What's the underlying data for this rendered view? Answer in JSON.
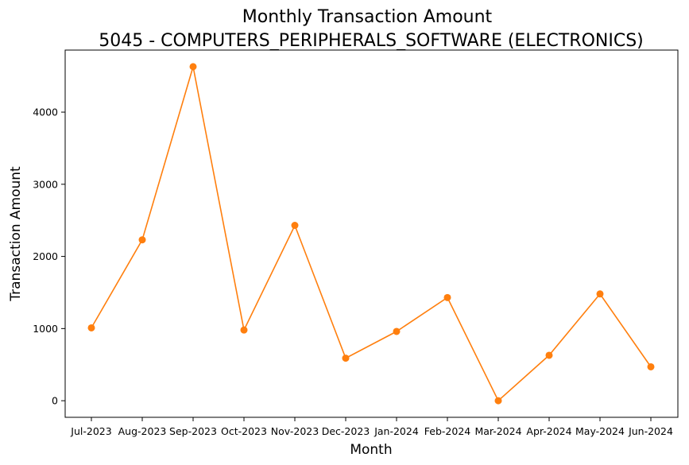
{
  "chart_data": {
    "type": "line",
    "title": "Monthly Transaction Amount",
    "subtitle": "5045 - COMPUTERS_PERIPHERALS_SOFTWARE (ELECTRONICS)",
    "xlabel": "Month",
    "ylabel": "Transaction Amount",
    "categories": [
      "Jul-2023",
      "Aug-2023",
      "Sep-2023",
      "Oct-2023",
      "Nov-2023",
      "Dec-2023",
      "Jan-2024",
      "Feb-2024",
      "Mar-2024",
      "Apr-2024",
      "May-2024",
      "Jun-2024"
    ],
    "series": [
      {
        "values": [
          1010,
          2230,
          4630,
          980,
          2430,
          590,
          960,
          1430,
          0,
          630,
          1480,
          470
        ],
        "color": "#ff7f0e",
        "marker": "circle"
      }
    ],
    "ylim": [
      -230,
      4860
    ],
    "yticks": [
      0,
      1000,
      2000,
      3000,
      4000
    ],
    "ytick_labels": [
      "0",
      "1000",
      "2000",
      "3000",
      "4000"
    ],
    "grid": false,
    "legend": "none"
  }
}
